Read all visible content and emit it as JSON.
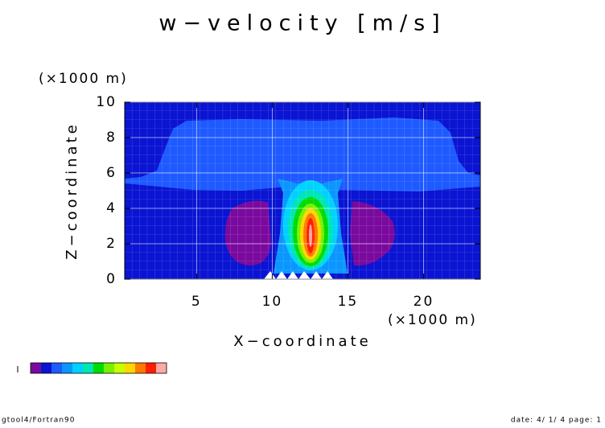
{
  "chart_data": {
    "type": "contour",
    "title": "w−velocity [m/s]",
    "x_label": "X−coordinate",
    "y_label": "Z−coordinate",
    "x_unit": "(×1000 m)",
    "y_unit": "(×1000 m)",
    "xlim": [
      0.25,
      23.75
    ],
    "xticks": [
      5,
      10,
      15,
      20
    ],
    "ylim": [
      0,
      10
    ],
    "yticks": [
      0,
      2,
      4,
      6,
      8,
      10
    ],
    "grid": true,
    "colorbar_colors": [
      "#7a0a9e",
      "#0a14d2",
      "#1e5aff",
      "#0a96ff",
      "#00d2ff",
      "#00e6b4",
      "#00dc00",
      "#78f000",
      "#c8ff00",
      "#ffd700",
      "#ff7800",
      "#ff1e00",
      "#ffa8a8"
    ]
  },
  "footer": {
    "left": "gtool4/Fortran90",
    "right": "date: 4/ 1/ 4 page: 1"
  }
}
